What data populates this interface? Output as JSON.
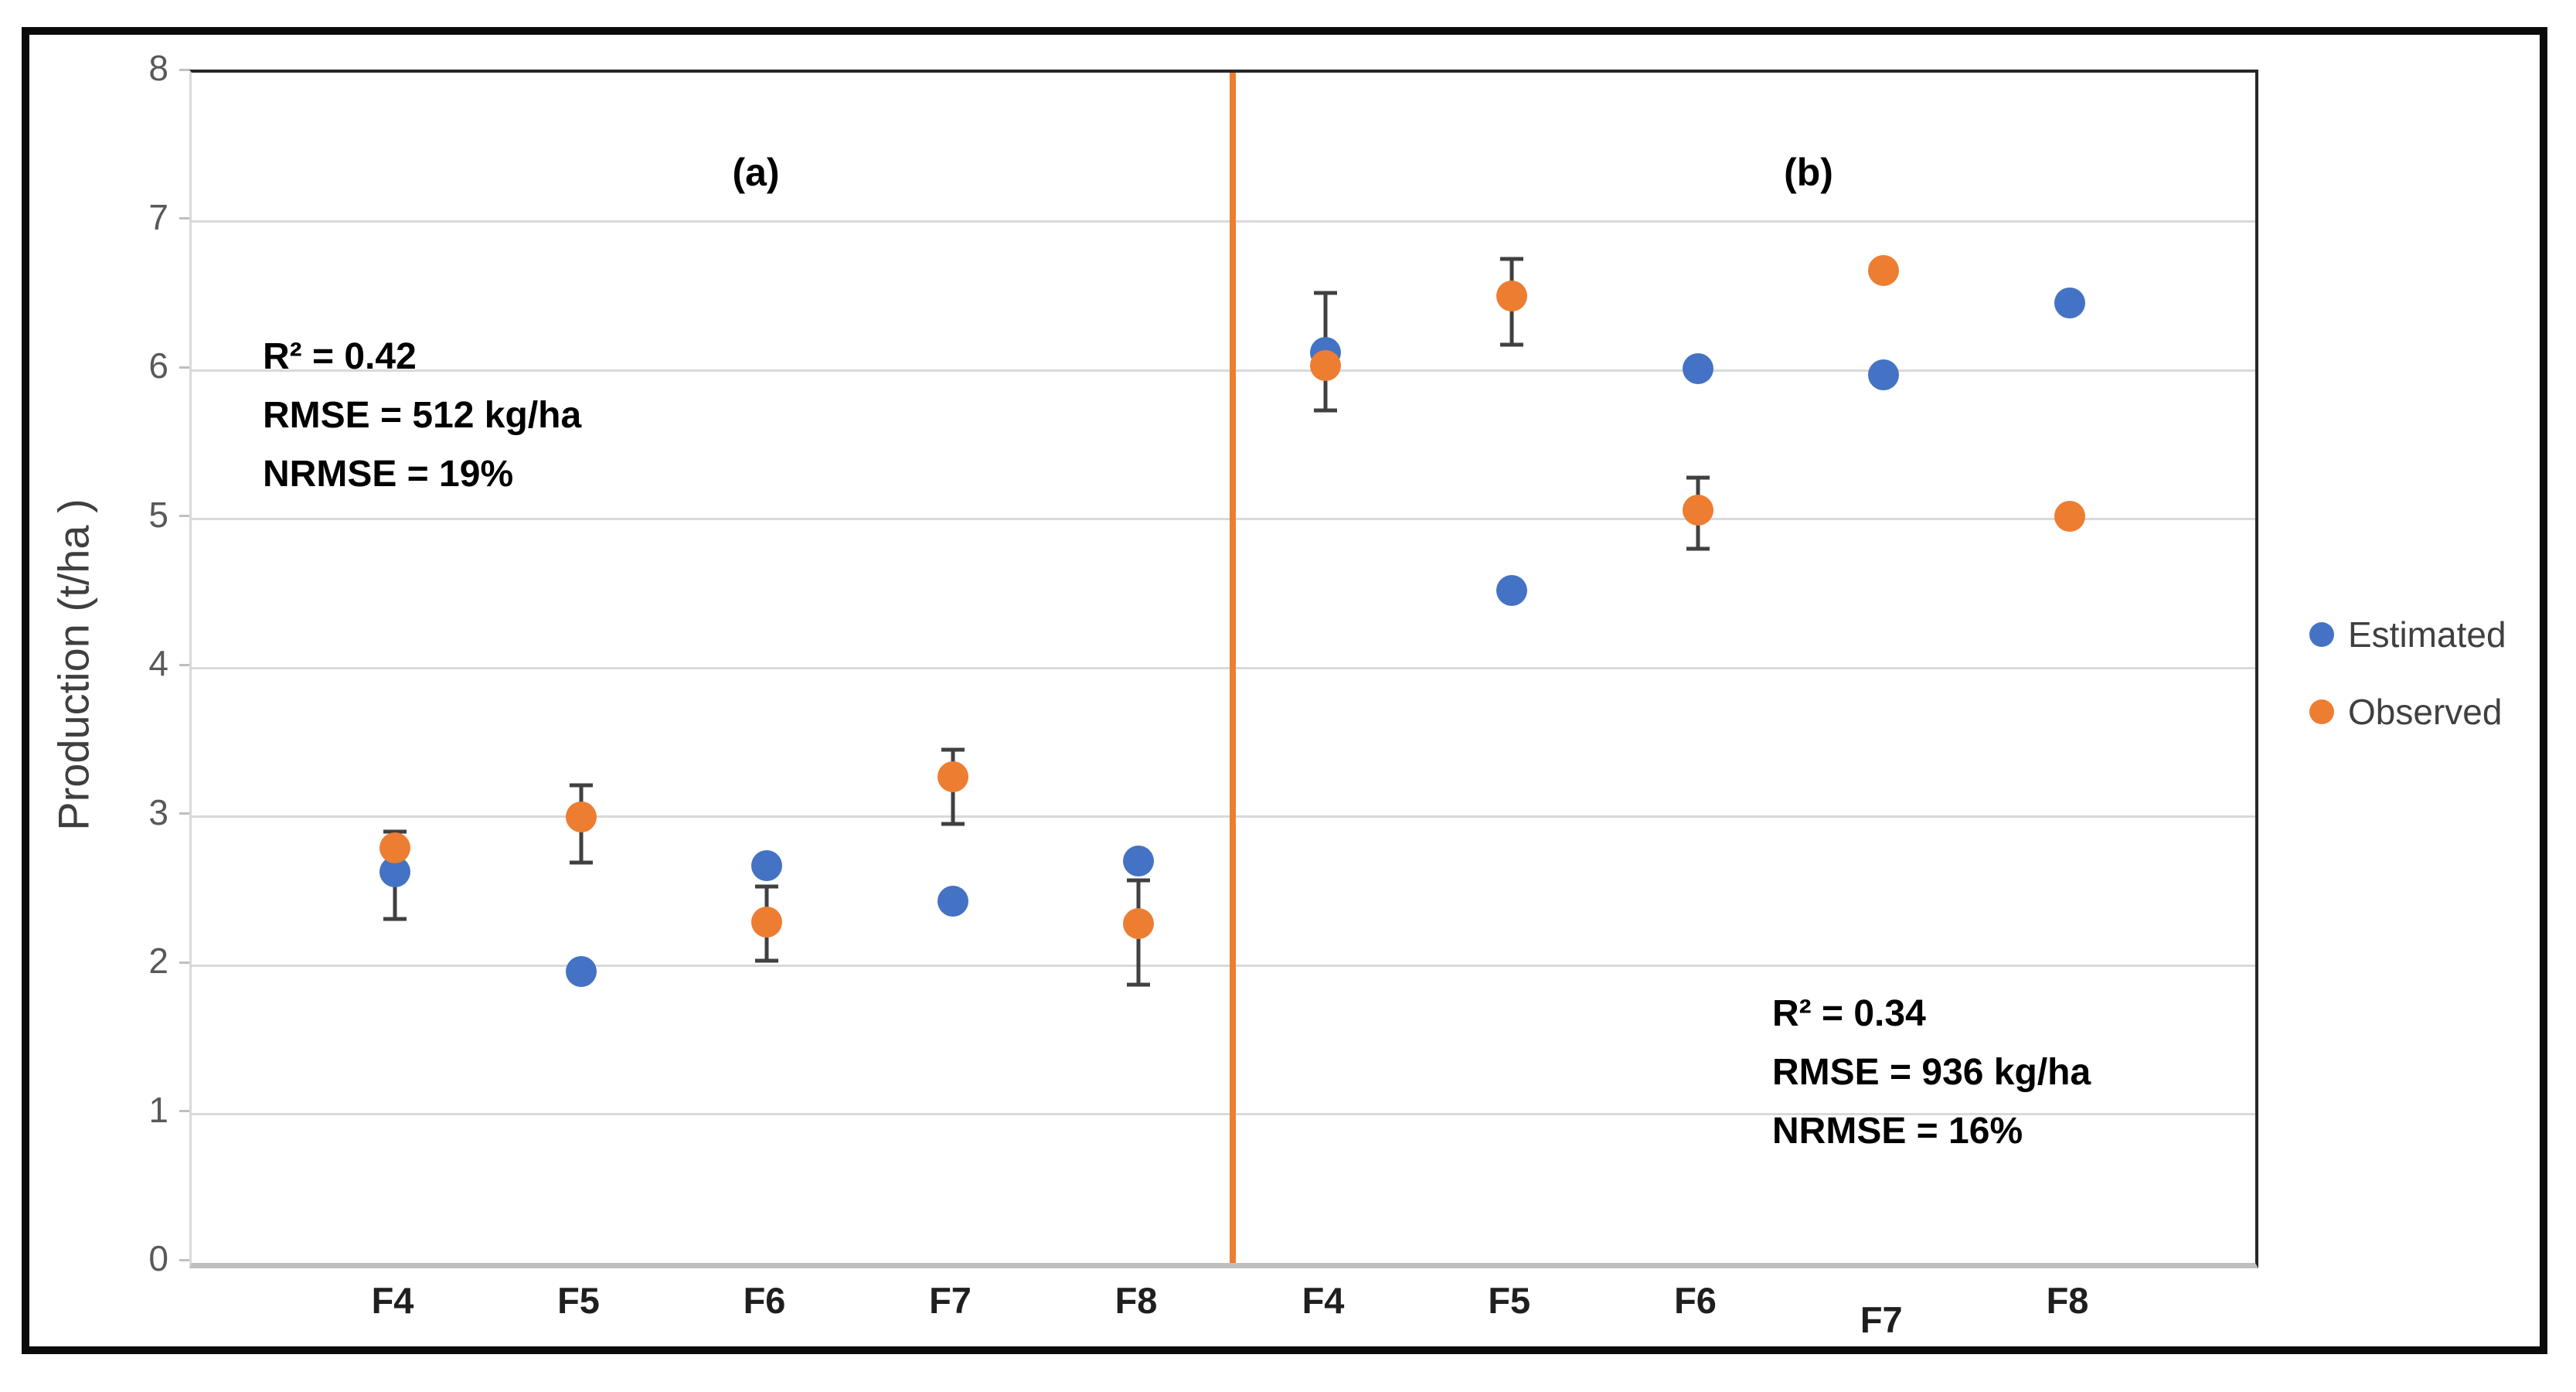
{
  "figure": {
    "y_axis_title": "Production (t/ha )",
    "y_ticks": [
      0,
      1,
      2,
      3,
      4,
      5,
      6,
      7,
      8
    ],
    "legend": {
      "items": [
        {
          "label": "Estimated",
          "color": "#4472C4"
        },
        {
          "label": "Observed",
          "color": "#ED7D31"
        }
      ]
    },
    "colors": {
      "estimated": "#4472C4",
      "observed": "#ED7D31",
      "divider": "#ED7D31",
      "gridline": "#D9D9D9",
      "error_bar": "#404040",
      "baseline": "#BFBFBF",
      "plot_border": "#262626"
    }
  },
  "chart_data": [
    {
      "type": "scatter",
      "panel_label": "(a)",
      "xlabel": "",
      "ylabel": "Production (t/ha )",
      "ylim": [
        0,
        8
      ],
      "grid": true,
      "categories": [
        "F4",
        "F5",
        "F6",
        "F7",
        "F8"
      ],
      "series": [
        {
          "name": "Estimated",
          "color": "#4472C4",
          "values": [
            2.63,
            1.96,
            2.67,
            2.43,
            2.7
          ]
        },
        {
          "name": "Observed",
          "color": "#ED7D31",
          "values": [
            2.79,
            3.0,
            2.29,
            3.27,
            2.28
          ],
          "error_low": [
            2.31,
            2.69,
            2.03,
            2.95,
            1.87
          ],
          "error_high": [
            2.9,
            3.21,
            2.53,
            3.45,
            2.57
          ]
        }
      ],
      "stats": [
        "R² = 0.42",
        "RMSE = 512 kg/ha",
        "NRMSE = 19%"
      ]
    },
    {
      "type": "scatter",
      "panel_label": "(b)",
      "xlabel": "",
      "ylabel": "Production (t/ha )",
      "ylim": [
        0,
        8
      ],
      "grid": true,
      "categories": [
        "F4",
        "F5",
        "F6",
        "F7",
        "F8"
      ],
      "series": [
        {
          "name": "Estimated",
          "color": "#4472C4",
          "values": [
            6.12,
            4.52,
            6.01,
            5.97,
            6.45
          ]
        },
        {
          "name": "Observed",
          "color": "#ED7D31",
          "values": [
            6.03,
            6.5,
            5.06,
            6.67,
            5.02
          ],
          "error_low": [
            5.73,
            6.17,
            4.8,
            null,
            null
          ],
          "error_high": [
            6.52,
            6.75,
            5.28,
            null,
            null
          ]
        }
      ],
      "stats": [
        "R² = 0.34",
        "RMSE = 936 kg/ha",
        "NRMSE = 16%"
      ]
    }
  ]
}
